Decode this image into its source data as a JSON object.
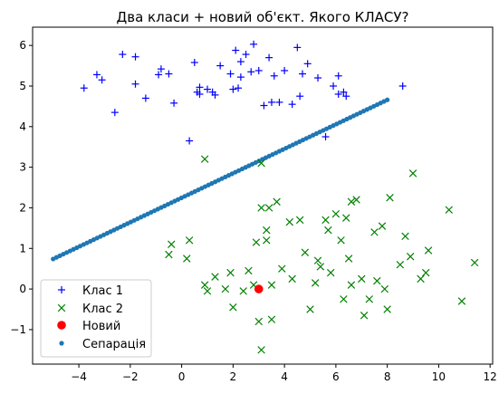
{
  "chart_data": {
    "type": "scatter",
    "title": "Два класи + новий об'єкт. Якого КЛАСУ?",
    "xlabel": "",
    "ylabel": "",
    "xlim": [
      -5.8,
      12.1
    ],
    "ylim": [
      -1.85,
      6.45
    ],
    "xticks": [
      -4,
      -2,
      0,
      2,
      4,
      6,
      8,
      10,
      12
    ],
    "yticks": [
      -1,
      0,
      1,
      2,
      3,
      4,
      5,
      6
    ],
    "grid": false,
    "legend_position": "lower-left",
    "series": [
      {
        "name": "Клас 1",
        "marker": "plus",
        "color": "#0000ff",
        "points": [
          [
            -3.8,
            4.95
          ],
          [
            -3.3,
            5.28
          ],
          [
            -3.1,
            5.15
          ],
          [
            -2.6,
            4.35
          ],
          [
            -2.3,
            5.78
          ],
          [
            -1.8,
            5.72
          ],
          [
            -1.8,
            5.05
          ],
          [
            -1.4,
            4.7
          ],
          [
            -0.9,
            5.28
          ],
          [
            -0.8,
            5.42
          ],
          [
            -0.5,
            5.3
          ],
          [
            -0.3,
            4.58
          ],
          [
            0.3,
            3.65
          ],
          [
            0.5,
            5.58
          ],
          [
            0.6,
            4.85
          ],
          [
            0.7,
            4.97
          ],
          [
            0.7,
            4.8
          ],
          [
            1.0,
            4.92
          ],
          [
            1.2,
            4.85
          ],
          [
            1.3,
            4.78
          ],
          [
            1.5,
            5.5
          ],
          [
            1.9,
            5.3
          ],
          [
            2.0,
            4.92
          ],
          [
            2.1,
            5.88
          ],
          [
            2.2,
            4.95
          ],
          [
            2.3,
            5.6
          ],
          [
            2.3,
            5.22
          ],
          [
            2.5,
            5.78
          ],
          [
            2.7,
            5.35
          ],
          [
            2.8,
            6.03
          ],
          [
            3.0,
            5.38
          ],
          [
            3.2,
            4.52
          ],
          [
            3.4,
            5.7
          ],
          [
            3.5,
            4.6
          ],
          [
            3.6,
            5.25
          ],
          [
            3.8,
            4.6
          ],
          [
            4.0,
            5.38
          ],
          [
            4.3,
            4.55
          ],
          [
            4.5,
            5.95
          ],
          [
            4.6,
            4.75
          ],
          [
            4.7,
            5.3
          ],
          [
            4.9,
            5.55
          ],
          [
            5.3,
            5.2
          ],
          [
            5.6,
            3.75
          ],
          [
            5.9,
            5.0
          ],
          [
            6.1,
            4.8
          ],
          [
            6.1,
            5.25
          ],
          [
            6.3,
            4.85
          ],
          [
            6.4,
            4.75
          ],
          [
            8.6,
            5.0
          ]
        ]
      },
      {
        "name": "Клас 2",
        "marker": "x",
        "color": "#008000",
        "points": [
          [
            -0.5,
            0.85
          ],
          [
            -0.4,
            1.1
          ],
          [
            0.2,
            0.75
          ],
          [
            0.3,
            1.2
          ],
          [
            0.9,
            3.2
          ],
          [
            0.9,
            0.1
          ],
          [
            1.0,
            -0.05
          ],
          [
            1.3,
            0.3
          ],
          [
            1.7,
            0.0
          ],
          [
            1.9,
            0.4
          ],
          [
            2.0,
            -0.45
          ],
          [
            2.4,
            -0.05
          ],
          [
            2.6,
            0.45
          ],
          [
            2.8,
            0.1
          ],
          [
            2.9,
            1.15
          ],
          [
            3.0,
            -0.8
          ],
          [
            3.1,
            3.1
          ],
          [
            3.1,
            2.0
          ],
          [
            3.1,
            -1.5
          ],
          [
            3.3,
            1.45
          ],
          [
            3.3,
            1.2
          ],
          [
            3.4,
            2.0
          ],
          [
            3.5,
            0.1
          ],
          [
            3.5,
            -0.75
          ],
          [
            3.7,
            2.15
          ],
          [
            3.9,
            0.5
          ],
          [
            4.2,
            1.65
          ],
          [
            4.3,
            0.25
          ],
          [
            4.6,
            1.7
          ],
          [
            4.8,
            0.9
          ],
          [
            5.0,
            -0.5
          ],
          [
            5.2,
            0.15
          ],
          [
            5.3,
            0.7
          ],
          [
            5.4,
            0.55
          ],
          [
            5.6,
            1.7
          ],
          [
            5.7,
            1.45
          ],
          [
            5.8,
            0.4
          ],
          [
            6.0,
            1.85
          ],
          [
            6.2,
            1.2
          ],
          [
            6.3,
            -0.25
          ],
          [
            6.4,
            1.75
          ],
          [
            6.5,
            0.75
          ],
          [
            6.6,
            2.15
          ],
          [
            6.6,
            0.1
          ],
          [
            6.8,
            2.2
          ],
          [
            7.0,
            0.25
          ],
          [
            7.1,
            -0.65
          ],
          [
            7.3,
            -0.25
          ],
          [
            7.5,
            1.4
          ],
          [
            7.6,
            0.2
          ],
          [
            7.8,
            1.55
          ],
          [
            7.9,
            0.0
          ],
          [
            8.0,
            -0.5
          ],
          [
            8.1,
            2.25
          ],
          [
            8.5,
            0.6
          ],
          [
            8.7,
            1.3
          ],
          [
            8.9,
            0.8
          ],
          [
            9.0,
            2.85
          ],
          [
            9.3,
            0.25
          ],
          [
            9.5,
            0.4
          ],
          [
            9.6,
            0.95
          ],
          [
            10.4,
            1.95
          ],
          [
            10.9,
            -0.3
          ],
          [
            11.4,
            0.65
          ]
        ]
      },
      {
        "name": "Новий",
        "marker": "circle",
        "color": "#ff0000",
        "points": [
          [
            3.0,
            0.0
          ]
        ]
      },
      {
        "name": "Сепарація",
        "marker": "dot",
        "color": "#1f77b4",
        "line_from": [
          -5.0,
          0.74
        ],
        "line_to": [
          8.0,
          4.66
        ],
        "count": 100
      }
    ]
  }
}
